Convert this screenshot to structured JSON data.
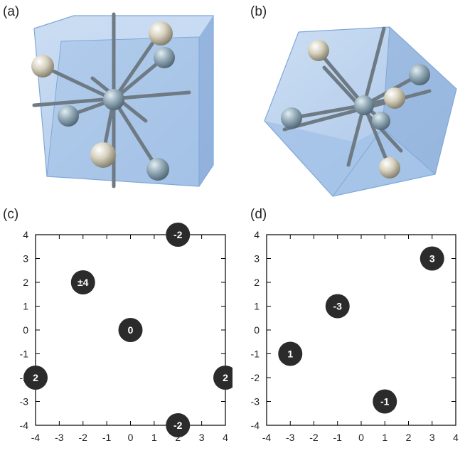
{
  "panels": {
    "a": "(a)",
    "b": "(b)",
    "c": "(c)",
    "d": "(d)"
  },
  "colors": {
    "glass": "#a8c6ea",
    "glass_edge": "#7fa8d8",
    "rod": "#6e7a84",
    "atom_silver": "#c9c4b4",
    "atom_blue": "#8ea3b0",
    "marker": "#2b2b2b",
    "marker_text": "#ffffff"
  },
  "chart_data": [
    {
      "type": "scatter",
      "panel": "(c)",
      "xlim": [
        -4,
        4
      ],
      "ylim": [
        -4,
        4
      ],
      "xticks": [
        -4,
        -3,
        -2,
        -1,
        0,
        1,
        2,
        3,
        4
      ],
      "yticks": [
        -4,
        -3,
        -2,
        -1,
        0,
        1,
        2,
        3,
        4
      ],
      "grid": false,
      "points": [
        {
          "x": 2,
          "y": 4,
          "label": "-2"
        },
        {
          "x": -2,
          "y": 2,
          "label": "±4"
        },
        {
          "x": 0,
          "y": 0,
          "label": "0"
        },
        {
          "x": -4,
          "y": -2,
          "label": "2"
        },
        {
          "x": 4,
          "y": -2,
          "label": "2"
        },
        {
          "x": 2,
          "y": -4,
          "label": "-2"
        }
      ]
    },
    {
      "type": "scatter",
      "panel": "(d)",
      "xlim": [
        -4,
        4
      ],
      "ylim": [
        -4,
        4
      ],
      "xticks": [
        -4,
        -3,
        -2,
        -1,
        0,
        1,
        2,
        3,
        4
      ],
      "yticks": [
        -4,
        -3,
        -2,
        -1,
        0,
        1,
        2,
        3,
        4
      ],
      "grid": false,
      "points": [
        {
          "x": 3,
          "y": 3,
          "label": "3"
        },
        {
          "x": -1,
          "y": 1,
          "label": "-3"
        },
        {
          "x": -3,
          "y": -1,
          "label": "1"
        },
        {
          "x": 1,
          "y": -3,
          "label": "-1"
        }
      ]
    }
  ]
}
